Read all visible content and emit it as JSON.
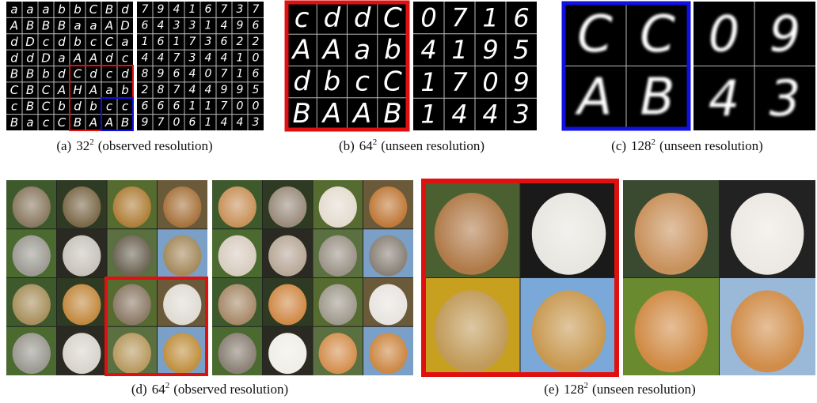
{
  "panels": [
    {
      "caption": {
        "label": "(a)",
        "base": "32",
        "exponent": "2",
        "note": "(observed resolution)"
      },
      "grids": [
        {
          "cells": [
            [
              "a",
              "a",
              "a",
              "b",
              "b",
              "C",
              "B",
              "d"
            ],
            [
              "A",
              "B",
              "B",
              "B",
              "a",
              "a",
              "A",
              "D"
            ],
            [
              "d",
              "D",
              "c",
              "d",
              "b",
              "c",
              "C",
              "a"
            ],
            [
              "d",
              "d",
              "D",
              "a",
              "A",
              "A",
              "d",
              "c"
            ],
            [
              "B",
              "B",
              "b",
              "d",
              "C",
              "d",
              "c",
              "d"
            ],
            [
              "C",
              "B",
              "C",
              "A",
              "H",
              "A",
              "a",
              "b"
            ],
            [
              "c",
              "B",
              "C",
              "b",
              "d",
              "b",
              "c",
              "c"
            ],
            [
              "B",
              "a",
              "c",
              "C",
              "B",
              "A",
              "A",
              "B"
            ]
          ]
        },
        {
          "cells": [
            [
              "7",
              "9",
              "4",
              "1",
              "6",
              "7",
              "3",
              "7"
            ],
            [
              "6",
              "4",
              "3",
              "3",
              "1",
              "4",
              "9",
              "6"
            ],
            [
              "1",
              "6",
              "1",
              "7",
              "3",
              "6",
              "2",
              "2"
            ],
            [
              "4",
              "4",
              "7",
              "3",
              "4",
              "4",
              "1",
              "0"
            ],
            [
              "8",
              "9",
              "6",
              "4",
              "0",
              "7",
              "1",
              "6"
            ],
            [
              "2",
              "8",
              "7",
              "4",
              "4",
              "9",
              "9",
              "5"
            ],
            [
              "6",
              "6",
              "6",
              "1",
              "1",
              "7",
              "0",
              "0"
            ],
            [
              "9",
              "7",
              "0",
              "6",
              "1",
              "4",
              "4",
              "3"
            ]
          ]
        }
      ]
    },
    {
      "caption": {
        "label": "(b)",
        "base": "64",
        "exponent": "2",
        "note": "(unseen resolution)"
      },
      "grids": [
        {
          "cells": [
            [
              "c",
              "d",
              "d",
              "C"
            ],
            [
              "A",
              "A",
              "a",
              "b"
            ],
            [
              "d",
              "b",
              "c",
              "C"
            ],
            [
              "B",
              "A",
              "A",
              "B"
            ]
          ]
        },
        {
          "cells": [
            [
              "0",
              "7",
              "1",
              "6"
            ],
            [
              "4",
              "1",
              "9",
              "5"
            ],
            [
              "1",
              "7",
              "0",
              "9"
            ],
            [
              "1",
              "4",
              "4",
              "3"
            ]
          ]
        }
      ]
    },
    {
      "caption": {
        "label": "(c)",
        "base": "128",
        "exponent": "2",
        "note": "(unseen resolution)"
      },
      "grids": [
        {
          "cells": [
            [
              "C",
              "C"
            ],
            [
              "A",
              "B"
            ]
          ]
        },
        {
          "cells": [
            [
              "0",
              "9"
            ],
            [
              "4",
              "3"
            ]
          ]
        }
      ]
    },
    {
      "caption": {
        "label": "(d)",
        "base": "64",
        "exponent": "2",
        "note": "(observed resolution)"
      }
    },
    {
      "caption": {
        "label": "(e)",
        "base": "128",
        "exponent": "2",
        "note": "(unseen resolution)"
      }
    }
  ]
}
